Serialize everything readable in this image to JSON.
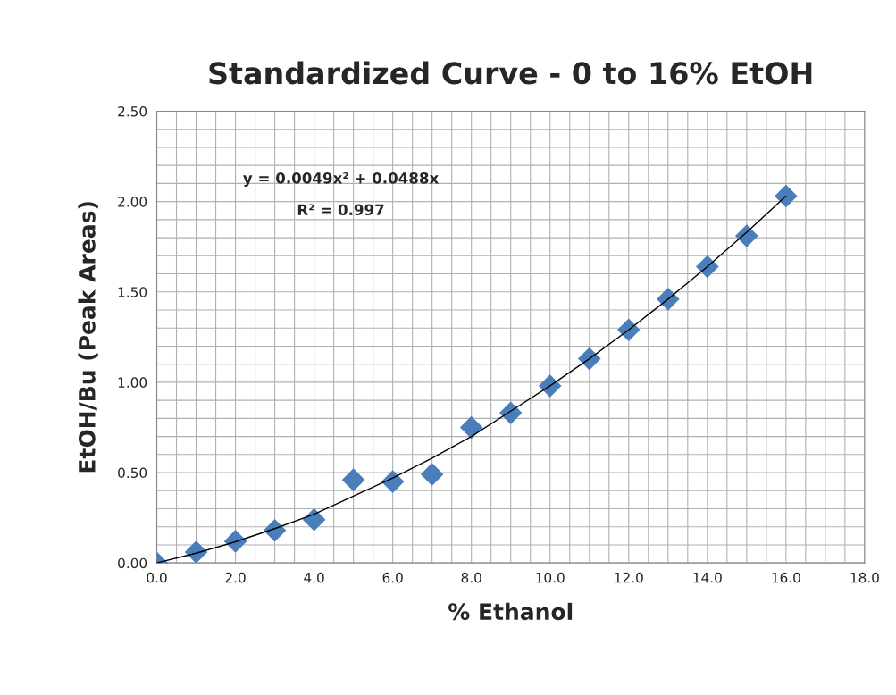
{
  "chart_data": {
    "type": "scatter",
    "title": "Standardized Curve - 0 to 16% EtOH",
    "xlabel": "% Ethanol",
    "ylabel": "EtOH/Bu (Peak Areas)",
    "series": [
      {
        "color": "#4a7ebb",
        "marker": "diamond",
        "x": [
          0,
          1,
          2,
          3,
          4,
          5,
          6,
          7,
          8,
          9,
          10,
          11,
          12,
          13,
          14,
          15,
          16
        ],
        "values": [
          0.0,
          0.06,
          0.12,
          0.18,
          0.24,
          0.46,
          0.45,
          0.49,
          0.75,
          0.83,
          0.98,
          1.13,
          1.29,
          1.46,
          1.64,
          1.81,
          2.03
        ]
      },
      {
        "type": "line",
        "color": "#000000",
        "marker": "none",
        "line_style": "solid",
        "x": [
          0,
          1,
          2,
          3,
          4,
          5,
          6,
          7,
          8,
          9,
          10,
          11,
          12,
          13,
          14,
          15,
          16
        ],
        "values": [
          0,
          0.054,
          0.117,
          0.19,
          0.27,
          0.37,
          0.47,
          0.58,
          0.7,
          0.84,
          0.98,
          1.13,
          1.29,
          1.46,
          1.64,
          1.83,
          2.03
        ]
      }
    ],
    "annotations": [
      "y = 0.0049x² + 0.0488x",
      "R² = 0.997"
    ],
    "xlim": [
      0,
      18
    ],
    "xticks": [
      {
        "value": 0,
        "label": "0.0"
      },
      {
        "value": 2,
        "label": "2.0"
      },
      {
        "value": 4,
        "label": "4.0"
      },
      {
        "value": 6,
        "label": "6.0"
      },
      {
        "value": 8,
        "label": "8.0"
      },
      {
        "value": 10,
        "label": "10.0"
      },
      {
        "value": 12,
        "label": "12.0"
      },
      {
        "value": 14,
        "label": "14.0"
      },
      {
        "value": 16,
        "label": "16.0"
      },
      {
        "value": 18,
        "label": "18.0"
      }
    ],
    "ylim": [
      0,
      2.5
    ],
    "yticks": [
      {
        "value": 0,
        "label": "0.00"
      },
      {
        "value": 0.5,
        "label": "0.50"
      },
      {
        "value": 1,
        "label": "1.00"
      },
      {
        "value": 1.5,
        "label": "1.50"
      },
      {
        "value": 2,
        "label": "2.00"
      },
      {
        "value": 2.5,
        "label": "2.50"
      }
    ],
    "grid": true
  }
}
